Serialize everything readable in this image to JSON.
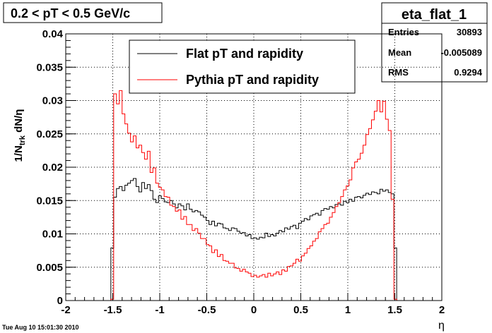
{
  "window": {
    "title_box": "0.2 < pT < 0.5 GeV/c",
    "footer_timestamp": "Tue Aug 10 15:01:30 2010"
  },
  "stats": {
    "name": "eta_flat_1",
    "rows": [
      {
        "label": "Entries",
        "value": "30893"
      },
      {
        "label": "Mean",
        "value": "-0.005089"
      },
      {
        "label": "RMS",
        "value": "0.9294"
      }
    ]
  },
  "chart_data": {
    "type": "line",
    "xlabel": "η",
    "ylabel_main": "1/N",
    "ylabel_sub": "trk",
    "ylabel_tail": " dN/η",
    "xlim": [
      -2,
      2
    ],
    "ylim": [
      0,
      0.04
    ],
    "x_ticks": [
      -2,
      -1.5,
      -1,
      -0.5,
      0,
      0.5,
      1,
      1.5,
      2
    ],
    "x_tick_labels": [
      "-2",
      "-1.5",
      "-1",
      "-0.5",
      "0",
      "0.5",
      "1",
      "1.5",
      "2"
    ],
    "y_ticks": [
      0,
      0.005,
      0.01,
      0.015,
      0.02,
      0.025,
      0.03,
      0.035,
      0.04
    ],
    "y_tick_labels": [
      "0",
      "0.005",
      "0.01",
      "0.015",
      "0.02",
      "0.025",
      "0.03",
      "0.035",
      "0.04"
    ],
    "grid": true,
    "legend_position": "top-center",
    "bin_edges_range": [
      -1.52,
      1.52
    ],
    "series": [
      {
        "name": "Flat pT and rapidity",
        "color": "#000000",
        "values": [
          0.0079,
          0.0155,
          0.0168,
          0.0171,
          0.0165,
          0.0173,
          0.0176,
          0.018,
          0.0183,
          0.0171,
          0.0163,
          0.0177,
          0.0168,
          0.0174,
          0.0165,
          0.0152,
          0.0147,
          0.0157,
          0.0153,
          0.0148,
          0.0147,
          0.015,
          0.0145,
          0.0139,
          0.0145,
          0.0142,
          0.0136,
          0.0145,
          0.0137,
          0.0133,
          0.0135,
          0.0133,
          0.0128,
          0.0125,
          0.012,
          0.0114,
          0.0119,
          0.0112,
          0.0116,
          0.0115,
          0.0109,
          0.0108,
          0.0105,
          0.0109,
          0.0108,
          0.0104,
          0.0101,
          0.0102,
          0.0097,
          0.0099,
          0.0093,
          0.0094,
          0.0092,
          0.0095,
          0.0094,
          0.0101,
          0.0096,
          0.0099,
          0.0097,
          0.0101,
          0.0105,
          0.0103,
          0.0109,
          0.0107,
          0.0111,
          0.0113,
          0.0108,
          0.0116,
          0.0119,
          0.0123,
          0.0121,
          0.0127,
          0.0129,
          0.0131,
          0.0128,
          0.0135,
          0.0138,
          0.0137,
          0.0141,
          0.0139,
          0.0144,
          0.0145,
          0.0143,
          0.0149,
          0.0147,
          0.0152,
          0.0149,
          0.0155,
          0.0156,
          0.0154,
          0.0158,
          0.0161,
          0.0159,
          0.0163,
          0.0162,
          0.016,
          0.0167,
          0.0164,
          0.0166,
          0.0162,
          0.016,
          0.0079
        ]
      },
      {
        "name": "Pythia pT and rapidity",
        "color": "#ff0000",
        "values": [
          0.0002,
          0.031,
          0.0295,
          0.0315,
          0.028,
          0.0265,
          0.0251,
          0.0238,
          0.0247,
          0.0229,
          0.0233,
          0.0222,
          0.0212,
          0.0224,
          0.0192,
          0.0199,
          0.0176,
          0.017,
          0.0166,
          0.0156,
          0.0155,
          0.0143,
          0.0141,
          0.0134,
          0.0136,
          0.0122,
          0.0126,
          0.0114,
          0.0114,
          0.0105,
          0.0108,
          0.0101,
          0.0093,
          0.0093,
          0.0084,
          0.0082,
          0.0072,
          0.0076,
          0.0066,
          0.0069,
          0.006,
          0.0059,
          0.0056,
          0.0056,
          0.0049,
          0.0048,
          0.0044,
          0.0047,
          0.0043,
          0.0041,
          0.0036,
          0.0038,
          0.0035,
          0.0037,
          0.0039,
          0.0035,
          0.0041,
          0.0037,
          0.004,
          0.0043,
          0.0039,
          0.0046,
          0.0044,
          0.0051,
          0.0052,
          0.0056,
          0.0062,
          0.0059,
          0.0067,
          0.0071,
          0.0078,
          0.0082,
          0.0089,
          0.0093,
          0.0103,
          0.0108,
          0.0114,
          0.0116,
          0.0125,
          0.0132,
          0.0141,
          0.0147,
          0.0156,
          0.0166,
          0.0172,
          0.0181,
          0.0199,
          0.0208,
          0.0212,
          0.0221,
          0.0233,
          0.0249,
          0.0258,
          0.0271,
          0.0284,
          0.03,
          0.0283,
          0.0299,
          0.0272,
          0.0255,
          0.0152,
          0.0002
        ]
      }
    ]
  }
}
